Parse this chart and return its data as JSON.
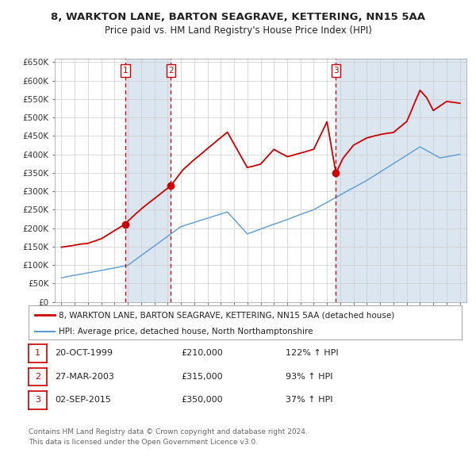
{
  "title": "8, WARKTON LANE, BARTON SEAGRAVE, KETTERING, NN15 5AA",
  "subtitle": "Price paid vs. HM Land Registry's House Price Index (HPI)",
  "red_line_label": "8, WARKTON LANE, BARTON SEAGRAVE, KETTERING, NN15 5AA (detached house)",
  "blue_line_label": "HPI: Average price, detached house, North Northamptonshire",
  "sales": [
    {
      "num": 1,
      "date": "20-OCT-1999",
      "price": 210000,
      "pct": "122%",
      "dir": "↑"
    },
    {
      "num": 2,
      "date": "27-MAR-2003",
      "price": 315000,
      "pct": "93%",
      "dir": "↑"
    },
    {
      "num": 3,
      "date": "02-SEP-2015",
      "price": 350000,
      "pct": "37%",
      "dir": "↑"
    }
  ],
  "sale_years": [
    1999.8,
    2003.25,
    2015.67
  ],
  "sale_prices": [
    210000,
    315000,
    350000
  ],
  "ylim": [
    0,
    660000
  ],
  "yticks": [
    0,
    50000,
    100000,
    150000,
    200000,
    250000,
    300000,
    350000,
    400000,
    450000,
    500000,
    550000,
    600000,
    650000
  ],
  "ytick_labels": [
    "£0",
    "£50K",
    "£100K",
    "£150K",
    "£200K",
    "£250K",
    "£300K",
    "£350K",
    "£400K",
    "£450K",
    "£500K",
    "£550K",
    "£600K",
    "£650K"
  ],
  "xlim_start": 1994.5,
  "xlim_end": 2025.5,
  "red_color": "#cc0000",
  "blue_color": "#5b9bd5",
  "footnote1": "Contains HM Land Registry data © Crown copyright and database right 2024.",
  "footnote2": "This data is licensed under the Open Government Licence v3.0.",
  "background_color": "#ffffff",
  "grid_color": "#cccccc",
  "shade_color": "#dce6f1"
}
